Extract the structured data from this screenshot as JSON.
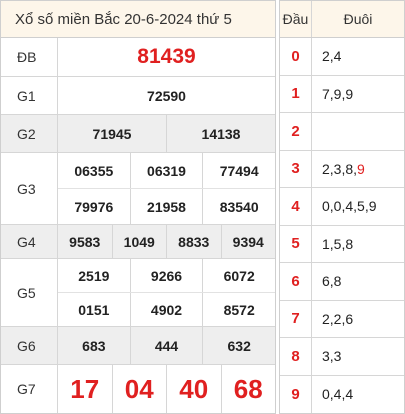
{
  "title": "Xổ số miền Bắc 20-6-2024 thứ 5",
  "prizes": {
    "db": {
      "label": "ĐB",
      "numbers": [
        "81439"
      ]
    },
    "g1": {
      "label": "G1",
      "numbers": [
        "72590"
      ]
    },
    "g2": {
      "label": "G2",
      "numbers": [
        "71945",
        "14138"
      ]
    },
    "g3": {
      "label": "G3",
      "numbers": [
        "06355",
        "06319",
        "77494",
        "79976",
        "21958",
        "83540"
      ]
    },
    "g4": {
      "label": "G4",
      "numbers": [
        "9583",
        "1049",
        "8833",
        "9394"
      ]
    },
    "g5": {
      "label": "G5",
      "numbers": [
        "2519",
        "9266",
        "6072",
        "0151",
        "4902",
        "8572"
      ]
    },
    "g6": {
      "label": "G6",
      "numbers": [
        "683",
        "444",
        "632"
      ]
    },
    "g7": {
      "label": "G7",
      "numbers": [
        "17",
        "04",
        "40",
        "68"
      ]
    }
  },
  "dau_duoi": {
    "dau_header": "Đầu",
    "duoi_header": "Đuôi",
    "rows": [
      {
        "dau": "0",
        "duoi": "2,4",
        "highlight": ""
      },
      {
        "dau": "1",
        "duoi": "7,9,9",
        "highlight": ""
      },
      {
        "dau": "2",
        "duoi": "",
        "highlight": ""
      },
      {
        "dau": "3",
        "duoi": "2,3,8,",
        "highlight": "9"
      },
      {
        "dau": "4",
        "duoi": "0,0,4,5,9",
        "highlight": ""
      },
      {
        "dau": "5",
        "duoi": "1,5,8",
        "highlight": ""
      },
      {
        "dau": "6",
        "duoi": "6,8",
        "highlight": ""
      },
      {
        "dau": "7",
        "duoi": "2,2,6",
        "highlight": ""
      },
      {
        "dau": "8",
        "duoi": "3,3",
        "highlight": ""
      },
      {
        "dau": "9",
        "duoi": "0,4,4",
        "highlight": ""
      }
    ]
  },
  "colors": {
    "accent_red": "#e02020",
    "header_bg": "#fdf6ea",
    "gray_row": "#eeeeee"
  }
}
